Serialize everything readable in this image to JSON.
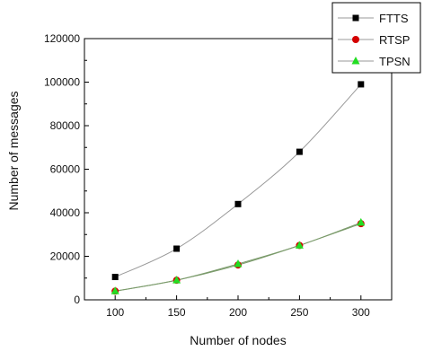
{
  "chart_data": {
    "type": "line",
    "title": "",
    "xlabel": "Number of nodes",
    "ylabel": "Number of messages",
    "x": [
      100,
      150,
      200,
      250,
      300
    ],
    "xlim": [
      75,
      325
    ],
    "ylim": [
      0,
      120000
    ],
    "xticks": [
      "100",
      "150",
      "200",
      "250",
      "300"
    ],
    "yticks": [
      "0",
      "20000",
      "40000",
      "60000",
      "80000",
      "100000",
      "120000"
    ],
    "grid": false,
    "legend_position": "top-right",
    "series": [
      {
        "name": "FTTS",
        "values": [
          10500,
          23500,
          44000,
          68000,
          99000
        ],
        "color": "#000000",
        "marker": "square"
      },
      {
        "name": "RTSP",
        "values": [
          4000,
          9000,
          16000,
          25000,
          35000
        ],
        "color": "#d40000",
        "marker": "circle"
      },
      {
        "name": "TPSN",
        "values": [
          4000,
          9000,
          16500,
          25000,
          35500
        ],
        "color": "#22dd22",
        "marker": "triangle"
      }
    ]
  }
}
